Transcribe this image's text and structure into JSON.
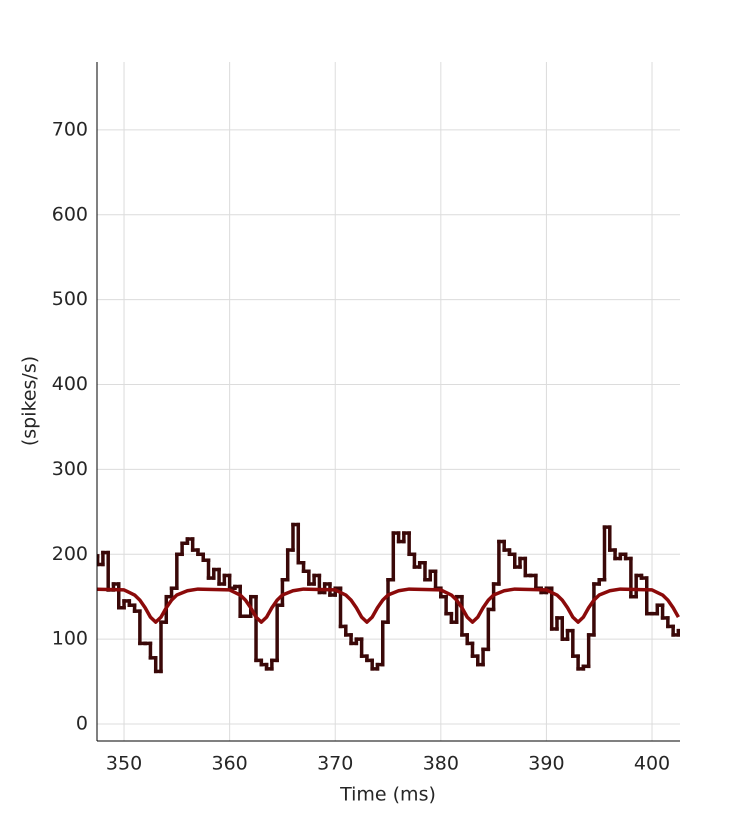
{
  "chart_data": {
    "type": "line",
    "xlabel": "Time (ms)",
    "ylabel": "(spikes/s)",
    "xlim": [
      347.44,
      402.65
    ],
    "ylim": [
      -20,
      780
    ],
    "xticks": [
      350,
      360,
      370,
      380,
      390,
      400
    ],
    "yticks": [
      0,
      100,
      200,
      300,
      400,
      500,
      600,
      700
    ],
    "grid": true,
    "series": [
      {
        "color": "#3a0808",
        "step": true,
        "bins": [
          347,
          347.5,
          348,
          348.5,
          349,
          349.5,
          350,
          350.5,
          351,
          351.5,
          352,
          352.5,
          353,
          353.5,
          354,
          354.5,
          355,
          355.5,
          356,
          356.5,
          357,
          357.5,
          358,
          358.5,
          359,
          359.5,
          360,
          360.5,
          361,
          361.5,
          362,
          362.5,
          363,
          363.5,
          364,
          364.5,
          365,
          365.5,
          366,
          366.5,
          367,
          367.5,
          368,
          368.5,
          369,
          369.5,
          370,
          370.5,
          371,
          371.5,
          372,
          372.5,
          373,
          373.5,
          374,
          374.5,
          375,
          375.5,
          376,
          376.5,
          377,
          377.5,
          378,
          378.5,
          379,
          379.5,
          380,
          380.5,
          381,
          381.5,
          382,
          382.5,
          383,
          383.5,
          384,
          384.5,
          385,
          385.5,
          386,
          386.5,
          387,
          387.5,
          388,
          388.5,
          389,
          389.5,
          390,
          390.5,
          391,
          391.5,
          392,
          392.5,
          393,
          393.5,
          394,
          394.5,
          395,
          395.5,
          396,
          396.5,
          397,
          397.5,
          398,
          398.5,
          399,
          399.5,
          400,
          400.5,
          401,
          401.5,
          402,
          402.5,
          403
        ],
        "values": [
          198,
          188,
          202,
          158,
          165,
          137,
          145,
          140,
          133,
          95,
          95,
          78,
          62,
          120,
          150,
          160,
          200,
          213,
          218,
          205,
          200,
          193,
          172,
          182,
          165,
          175,
          160,
          162,
          127,
          127,
          150,
          75,
          70,
          65,
          75,
          140,
          170,
          205,
          235,
          190,
          180,
          165,
          175,
          155,
          165,
          152,
          160,
          115,
          105,
          95,
          100,
          80,
          75,
          65,
          70,
          120,
          170,
          225,
          215,
          225,
          200,
          185,
          190,
          170,
          180,
          160,
          150,
          130,
          120,
          150,
          105,
          95,
          80,
          70,
          88,
          135,
          165,
          215,
          205,
          200,
          185,
          195,
          175,
          175,
          160,
          155,
          160,
          112,
          125,
          100,
          110,
          80,
          65,
          68,
          105,
          165,
          170,
          232,
          205,
          195,
          200,
          195,
          150,
          175,
          172,
          130,
          130,
          140,
          125,
          115,
          105,
          110
        ]
      },
      {
        "color": "#8b0a0a",
        "x": [
          347,
          350,
          351,
          351.5,
          352,
          352.5,
          353,
          353.5,
          354,
          354.5,
          355,
          356,
          357,
          360,
          361,
          361.5,
          362,
          362.5,
          363,
          363.5,
          364,
          364.5,
          365,
          366,
          367,
          370,
          371,
          371.5,
          372,
          372.5,
          373,
          373.5,
          374,
          374.5,
          375,
          376,
          377,
          380,
          381,
          381.5,
          382,
          382.5,
          383,
          383.5,
          384,
          384.5,
          385,
          386,
          387,
          390,
          391,
          391.5,
          392,
          392.5,
          393,
          393.5,
          394,
          394.5,
          395,
          396,
          397,
          400,
          401,
          401.5,
          402,
          402.5
        ],
        "values": [
          159,
          158,
          152,
          146,
          137,
          126,
          120,
          126,
          137,
          146,
          152,
          157,
          159,
          158,
          152,
          146,
          137,
          126,
          120,
          126,
          137,
          146,
          152,
          157,
          159,
          158,
          152,
          146,
          137,
          126,
          120,
          126,
          137,
          146,
          152,
          157,
          159,
          158,
          152,
          146,
          137,
          126,
          120,
          126,
          137,
          146,
          152,
          157,
          159,
          158,
          152,
          146,
          137,
          126,
          120,
          126,
          137,
          146,
          152,
          157,
          159,
          158,
          152,
          146,
          137,
          126
        ]
      }
    ]
  }
}
